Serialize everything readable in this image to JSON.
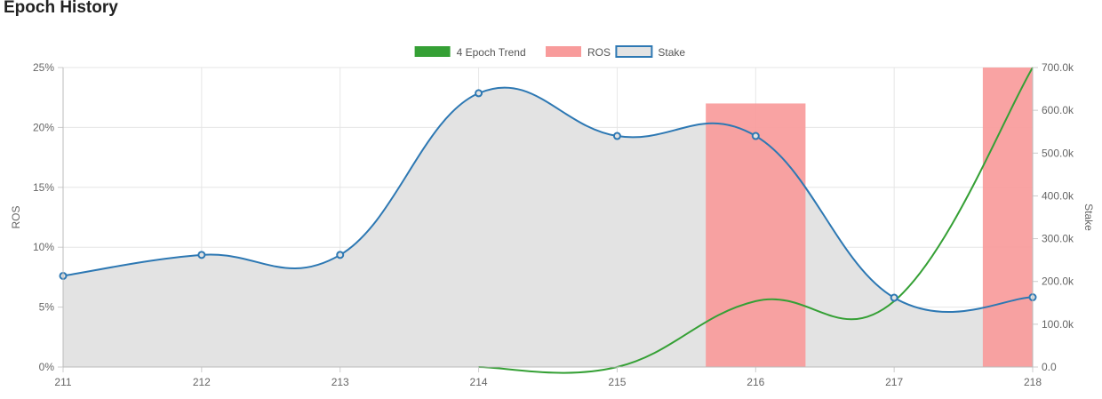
{
  "title": "Epoch History",
  "chart_data": {
    "type": "line",
    "categories": [
      "211",
      "212",
      "213",
      "214",
      "215",
      "216",
      "217",
      "218"
    ],
    "left_axis": {
      "label": "ROS",
      "ticks": [
        "0%",
        "5%",
        "10%",
        "15%",
        "20%",
        "25%"
      ],
      "tick_values": [
        0,
        5,
        10,
        15,
        20,
        25
      ],
      "range": [
        0,
        25
      ]
    },
    "right_axis": {
      "label": "Stake",
      "ticks": [
        "0.0",
        "100.0k",
        "200.0k",
        "300.0k",
        "400.0k",
        "500.0k",
        "600.0k",
        "700.0k"
      ],
      "tick_values": [
        0,
        100000,
        200000,
        300000,
        400000,
        500000,
        600000,
        700000
      ],
      "range": [
        0,
        700000
      ]
    },
    "grid": true,
    "legend_position": "top",
    "series": [
      {
        "name": "4 Epoch Trend",
        "kind": "line",
        "axis": "left",
        "color": "#35a035",
        "values": [
          null,
          null,
          null,
          0,
          0,
          5.5,
          5.5,
          25
        ]
      },
      {
        "name": "ROS",
        "kind": "bar",
        "axis": "left",
        "color": "#f89b9b",
        "values": [
          0,
          0,
          0,
          0,
          0,
          22,
          0,
          25
        ]
      },
      {
        "name": "Stake",
        "kind": "area",
        "axis": "right",
        "color": "#2d78b3",
        "fill": "#e3e3e3",
        "values": [
          213000,
          262000,
          262000,
          640000,
          540000,
          540000,
          162000,
          163000
        ]
      }
    ]
  }
}
